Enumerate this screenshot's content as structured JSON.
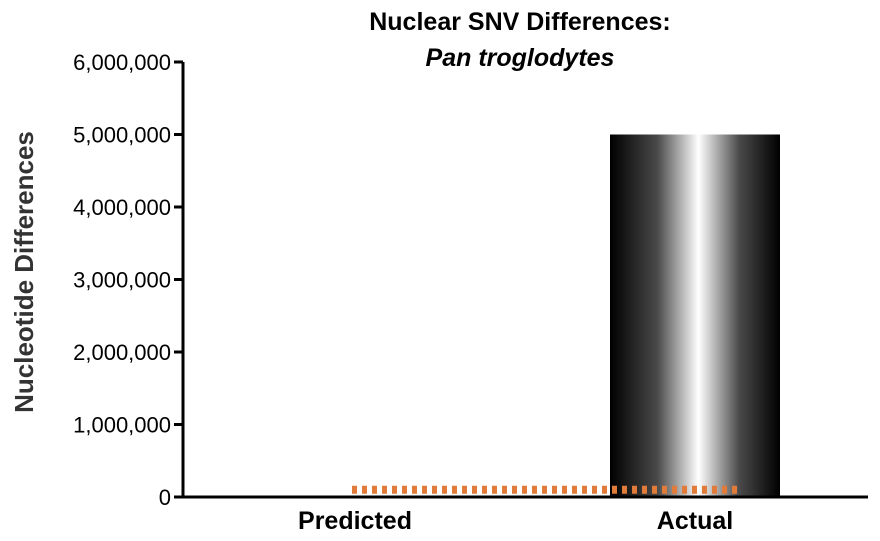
{
  "chart_data": {
    "type": "bar",
    "title": "Nuclear SNV Differences:",
    "subtitle": "Pan troglodytes",
    "ylabel": "Nucleotide Differences",
    "ylim": [
      0,
      6000000
    ],
    "yticks": [
      "0",
      "1,000,000",
      "2,000,000",
      "3,000,000",
      "4,000,000",
      "5,000,000",
      "6,000,000"
    ],
    "categories": [
      "Predicted",
      "Actual"
    ],
    "values": [
      100000,
      5000000
    ],
    "reference_line": {
      "value": 100000,
      "style": "dotted",
      "color": "#e07b39"
    },
    "colors": {
      "bar_dark": "#000000",
      "bar_light": "#ffffff",
      "axis": "#000000"
    },
    "grid": false,
    "legend": "none"
  }
}
